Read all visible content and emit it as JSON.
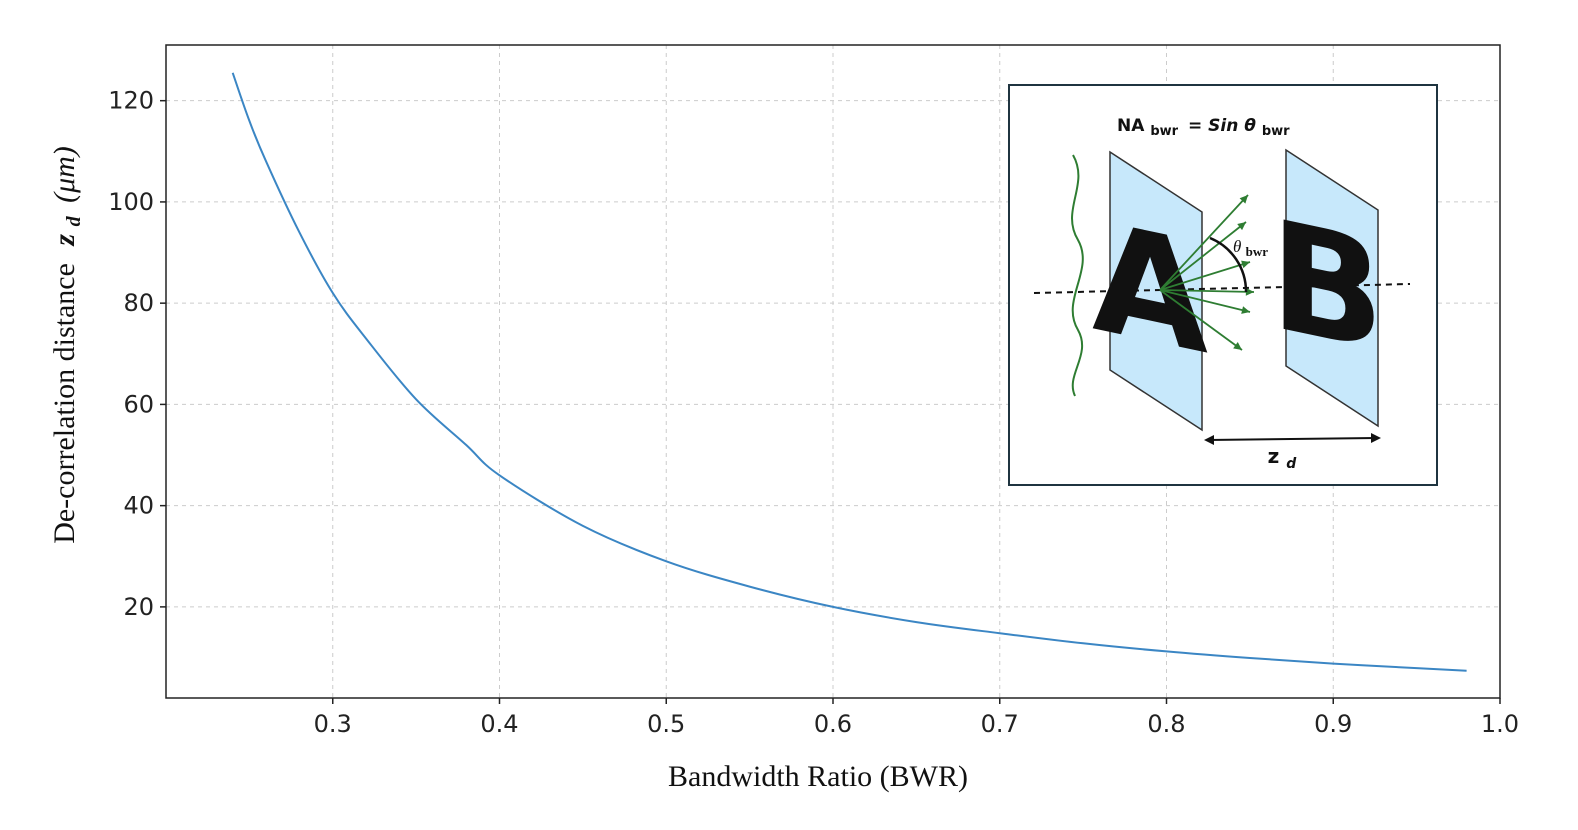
{
  "chart_data": {
    "type": "line",
    "xlabel": "Bandwidth Ratio (BWR)",
    "ylabel_prefix": "De-correlation distance",
    "ylabel_symbol": "z",
    "ylabel_subscript": "d",
    "ylabel_unit": "(μm)",
    "xlim": [
      0.2,
      1.0
    ],
    "ylim": [
      2,
      131
    ],
    "xticks": [
      "0.3",
      "0.4",
      "0.5",
      "0.6",
      "0.7",
      "0.8",
      "0.9",
      "1.0"
    ],
    "yticks": [
      "20",
      "40",
      "60",
      "80",
      "100",
      "120"
    ],
    "grid": true,
    "line_color": "#3b86c4",
    "x": [
      0.24,
      0.25,
      0.26,
      0.28,
      0.3,
      0.32,
      0.35,
      0.38,
      0.4,
      0.45,
      0.5,
      0.55,
      0.6,
      0.65,
      0.7,
      0.75,
      0.8,
      0.85,
      0.9,
      0.95,
      0.98
    ],
    "y": [
      125.5,
      116,
      108,
      94,
      82,
      73,
      61,
      52,
      46,
      36,
      29,
      24,
      20,
      17,
      14.8,
      12.8,
      11.2,
      9.9,
      8.8,
      7.9,
      7.4
    ]
  },
  "inset": {
    "equation_lhs": "NA",
    "equation_lhs_sub": "bwr",
    "equation_rhs": "= Sin θ",
    "equation_rhs_sub": "bwr",
    "angle_symbol": "θ",
    "angle_sub": "bwr",
    "plane_a_letter": "A",
    "plane_b_letter": "B",
    "distance_symbol": "z",
    "distance_sub": "d",
    "plane_fill": "#c7e8fb",
    "ray_color": "#2e7d32"
  }
}
